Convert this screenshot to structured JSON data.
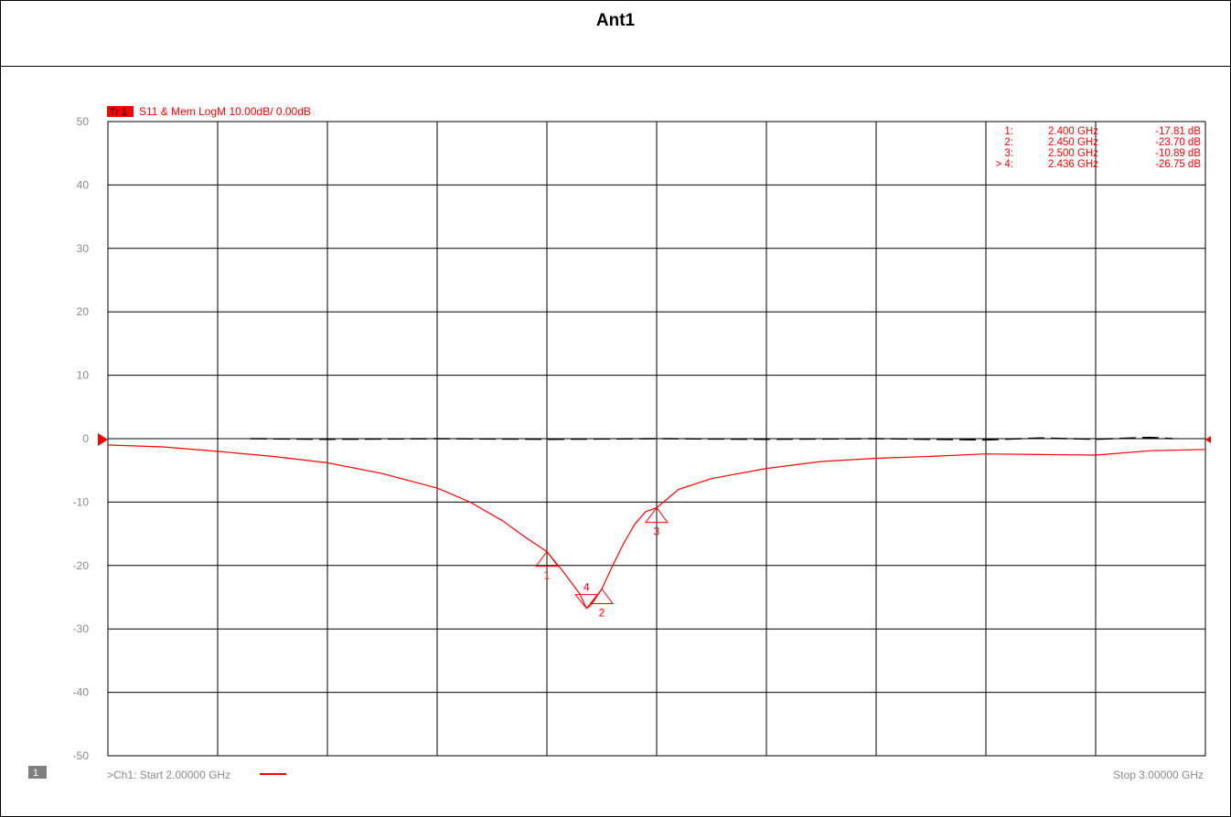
{
  "page_title": "Ant1",
  "channel_badge": "1",
  "chart_data": {
    "type": "line",
    "trace_label": "Tr 1",
    "trace_header": "S11 & Mem LogM 10.00dB/  0.00dB",
    "x_unit": "GHz",
    "xlim": [
      2.0,
      3.0
    ],
    "ylim": [
      -50,
      50
    ],
    "y_ticks": [
      "50",
      "40",
      "30",
      "20",
      "10",
      "0",
      "-10",
      "-20",
      "-30",
      "-40",
      "-50"
    ],
    "x_divisions": 10,
    "grid": true,
    "start_label": ">Ch1:  Start  2.00000 GHz",
    "stop_label": "Stop  3.00000 GHz",
    "colors": {
      "trace": "#ff0000",
      "memory": "#000000",
      "grid": "#000000",
      "axis_text": "#8a8a8a",
      "badge_bg": "#808080"
    },
    "series": [
      {
        "role": "S11 trace",
        "x": [
          2.0,
          2.05,
          2.1,
          2.15,
          2.2,
          2.25,
          2.3,
          2.33,
          2.36,
          2.38,
          2.4,
          2.415,
          2.43,
          2.436,
          2.44,
          2.45,
          2.46,
          2.47,
          2.48,
          2.49,
          2.5,
          2.52,
          2.55,
          2.6,
          2.65,
          2.7,
          2.75,
          2.8,
          2.85,
          2.9,
          2.95,
          3.0
        ],
        "y": [
          -1.0,
          -1.3,
          -2.0,
          -2.8,
          -3.8,
          -5.5,
          -7.8,
          -10.0,
          -13.0,
          -15.5,
          -17.81,
          -21.0,
          -24.5,
          -26.75,
          -26.3,
          -23.7,
          -20.0,
          -16.5,
          -13.5,
          -11.5,
          -10.89,
          -8.0,
          -6.3,
          -4.7,
          -3.6,
          -3.1,
          -2.8,
          -2.4,
          -2.5,
          -2.6,
          -1.9,
          -1.7
        ]
      },
      {
        "role": "memory trace",
        "x": [
          2.13,
          2.2,
          2.3,
          2.4,
          2.5,
          2.6,
          2.7,
          2.8,
          2.85,
          2.9,
          2.95,
          2.97
        ],
        "y": [
          0.0,
          -0.1,
          0.0,
          -0.1,
          0.0,
          -0.1,
          0.0,
          -0.2,
          0.1,
          -0.1,
          0.2,
          0.0
        ]
      }
    ],
    "markers": [
      {
        "id": "1",
        "x": 2.4,
        "y": -17.81,
        "readout_num": "1:",
        "readout_freq": "2.400  GHz",
        "readout_val": "-17.81 dB"
      },
      {
        "id": "2",
        "x": 2.45,
        "y": -23.7,
        "readout_num": "2:",
        "readout_freq": "2.450  GHz",
        "readout_val": "-23.70 dB"
      },
      {
        "id": "3",
        "x": 2.5,
        "y": -10.89,
        "readout_num": "3:",
        "readout_freq": "2.500  GHz",
        "readout_val": "-10.89 dB"
      },
      {
        "id": "4",
        "x": 2.436,
        "y": -26.75,
        "active": true,
        "readout_num": "> 4:",
        "readout_freq": "2.436  GHz",
        "readout_val": "-26.75 dB"
      }
    ]
  }
}
